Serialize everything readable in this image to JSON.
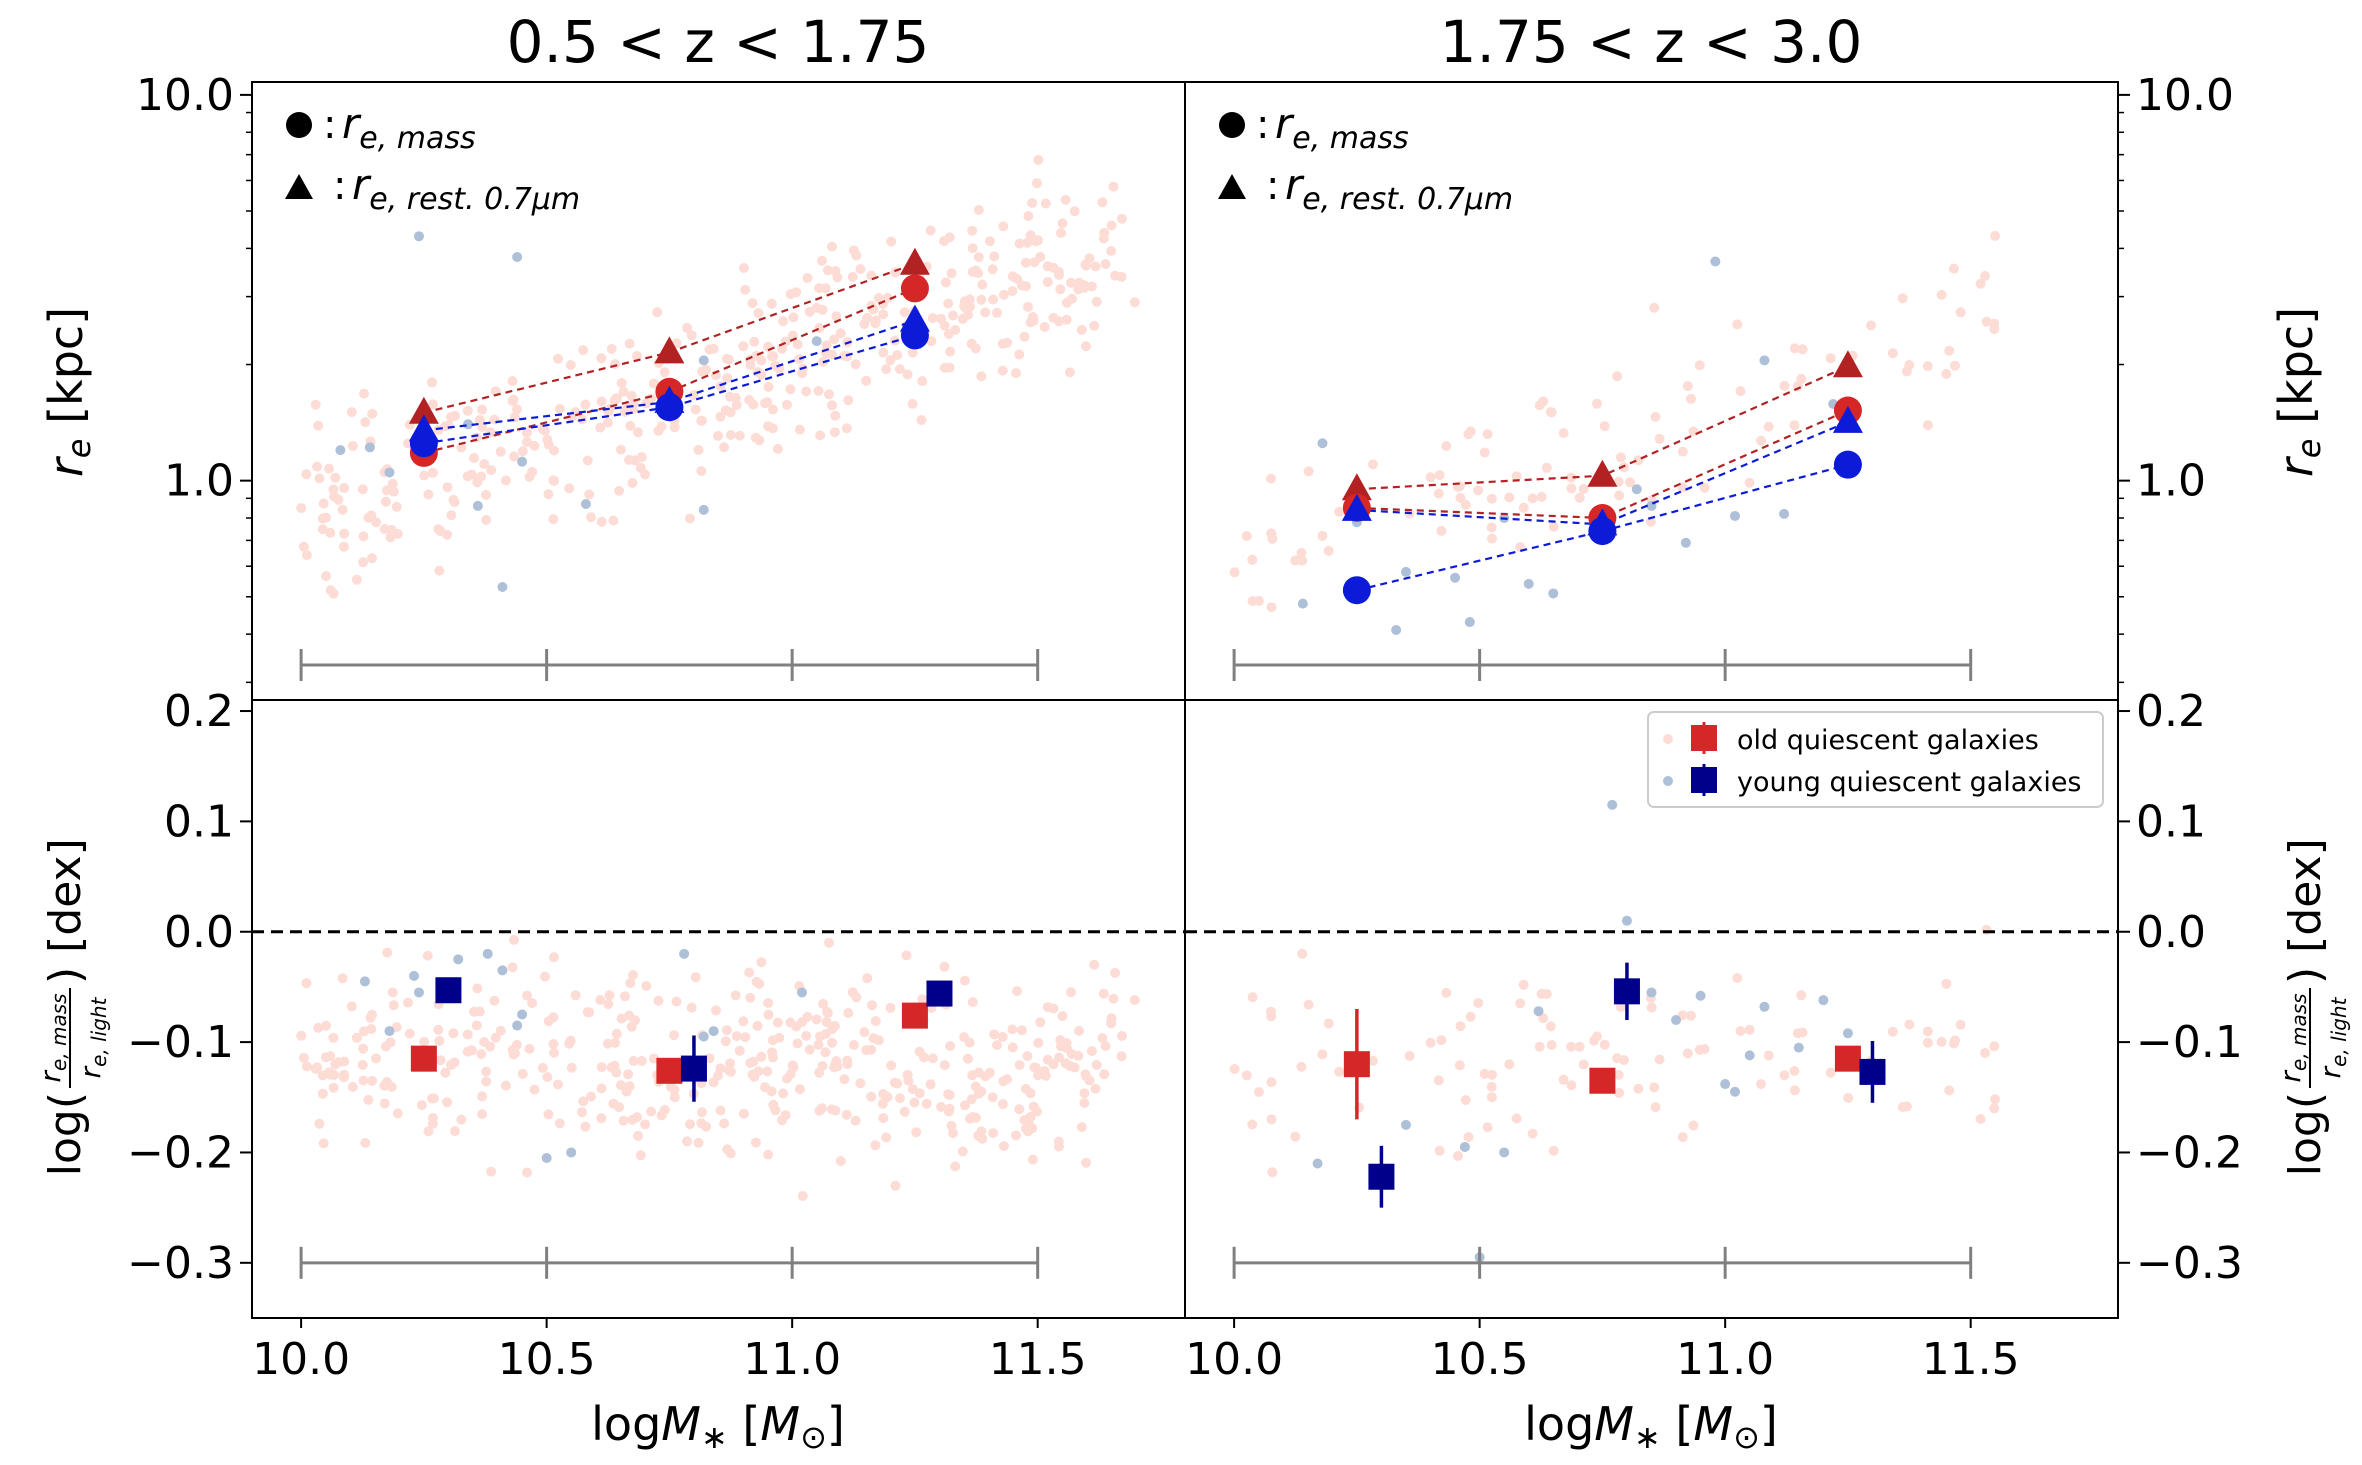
{
  "colors": {
    "old": "#d62728",
    "old_line": "#b22222",
    "old_scatter": "#fddcd6",
    "young": "#0b1bd8",
    "young_sq": "#00008b",
    "young_scatter": "#aebfd8",
    "bin_bar": "#808080",
    "axis": "#000000"
  },
  "chart_data": {
    "type": "scatter",
    "figure": "2x2 panels: rows = effective radius / radius ratio, columns = redshift bins",
    "columns": [
      {
        "title": "0.5 < z < 1.75"
      },
      {
        "title": "1.75 < z < 3.0"
      }
    ],
    "xlabel": "logM∗ [M⊙]",
    "xlim": [
      9.9,
      11.8
    ],
    "xticks": [
      "10.0",
      "10.5",
      "11.0",
      "11.5"
    ],
    "bin_edges": [
      10.0,
      10.5,
      11.0,
      11.5
    ],
    "top_row": {
      "ylabel": "r_e [kpc]",
      "yscale": "log",
      "ylim": [
        0.27,
        10.8
      ],
      "yticks": [
        {
          "label": "1.0",
          "value": 1.0
        },
        {
          "label": "10.0",
          "value": 10.0
        }
      ],
      "marker_legend": [
        {
          "symbol": "●",
          "label": "r_e,mass"
        },
        {
          "symbol": "▲",
          "label": "r_e,rest.0.7μm"
        }
      ],
      "panels": [
        {
          "old_light": {
            "x": [
              10.25,
              10.75,
              11.25
            ],
            "y": [
              1.5,
              2.15,
              3.65
            ]
          },
          "old_mass": {
            "x": [
              10.25,
              10.75,
              11.25
            ],
            "y": [
              1.18,
              1.7,
              3.15
            ]
          },
          "young_light": {
            "x": [
              10.25,
              10.75,
              11.25
            ],
            "y": [
              1.35,
              1.6,
              2.6
            ]
          },
          "young_mass": {
            "x": [
              10.25,
              10.75,
              11.25
            ],
            "y": [
              1.25,
              1.55,
              2.38
            ]
          },
          "young_individual": {
            "x": [
              10.08,
              10.14,
              10.18,
              10.24,
              10.34,
              10.44,
              10.45,
              10.36,
              10.41,
              10.58,
              10.82,
              10.82,
              11.05
            ],
            "y": [
              1.2,
              1.22,
              1.05,
              4.3,
              1.4,
              3.8,
              1.12,
              0.86,
              0.53,
              0.87,
              0.84,
              2.05,
              2.3
            ]
          }
        },
        {
          "old_light": {
            "x": [
              10.25,
              10.75,
              11.25
            ],
            "y": [
              0.95,
              1.03,
              1.98
            ]
          },
          "old_mass": {
            "x": [
              10.25,
              10.75,
              11.25
            ],
            "y": [
              0.85,
              0.8,
              1.52
            ]
          },
          "young_light": {
            "x": [
              10.25,
              10.75,
              11.25
            ],
            "y": [
              0.84,
              0.77,
              1.42
            ]
          },
          "young_mass": {
            "x": [
              10.25,
              10.75,
              11.25
            ],
            "y": [
              0.52,
              0.74,
              1.1
            ]
          },
          "young_individual": {
            "x": [
              10.14,
              10.18,
              10.25,
              10.33,
              10.35,
              10.45,
              10.48,
              10.55,
              10.6,
              10.65,
              10.82,
              10.85,
              10.92,
              10.98,
              11.02,
              11.08,
              11.12,
              11.22
            ],
            "y": [
              0.48,
              1.25,
              0.78,
              0.41,
              0.58,
              0.56,
              0.43,
              0.8,
              0.54,
              0.51,
              0.95,
              0.86,
              0.69,
              3.7,
              0.81,
              2.05,
              0.82,
              1.58
            ]
          }
        }
      ]
    },
    "bottom_row": {
      "ylabel": "log(r_e,mass / r_e,light) [dex]",
      "ylim": [
        -0.35,
        0.21
      ],
      "yticks": [
        {
          "label": "−0.3",
          "value": -0.3
        },
        {
          "label": "−0.2",
          "value": -0.2
        },
        {
          "label": "−0.1",
          "value": -0.1
        },
        {
          "label": "0.0",
          "value": 0.0
        },
        {
          "label": "0.1",
          "value": 0.1
        },
        {
          "label": "0.2",
          "value": 0.2
        }
      ],
      "reference_line": 0.0,
      "legend": [
        "old quiescent galaxies",
        "young quiescent galaxies"
      ],
      "panels": [
        {
          "old": {
            "x": [
              10.25,
              10.75,
              11.25
            ],
            "y": [
              -0.115,
              -0.126,
              -0.076
            ],
            "yerr": [
              0.007,
              0.008,
              0.007
            ]
          },
          "young": {
            "x": [
              10.3,
              10.8,
              11.3
            ],
            "y": [
              -0.053,
              -0.124,
              -0.056
            ],
            "yerr": [
              0.008,
              0.03,
              0.008
            ]
          },
          "young_individual": {
            "x": [
              10.13,
              10.18,
              10.23,
              10.24,
              10.32,
              10.38,
              10.41,
              10.44,
              10.45,
              10.5,
              10.55,
              10.78,
              10.82,
              10.84,
              11.02
            ],
            "y": [
              -0.045,
              -0.09,
              -0.04,
              -0.055,
              -0.025,
              -0.02,
              -0.035,
              -0.085,
              -0.075,
              -0.205,
              -0.2,
              -0.02,
              -0.095,
              -0.09,
              -0.055
            ]
          }
        },
        {
          "old": {
            "x": [
              10.25,
              10.75,
              11.25
            ],
            "y": [
              -0.12,
              -0.135,
              -0.115
            ],
            "yerr": [
              0.05,
              0.008,
              0.01
            ]
          },
          "young": {
            "x": [
              10.3,
              10.8,
              11.3
            ],
            "y": [
              -0.222,
              -0.054,
              -0.127
            ],
            "yerr": [
              0.028,
              0.026,
              0.028
            ]
          },
          "young_individual": {
            "x": [
              10.17,
              10.35,
              10.47,
              10.5,
              10.55,
              10.62,
              10.77,
              10.8,
              10.85,
              10.9,
              10.95,
              11.0,
              11.02,
              11.05,
              11.08,
              11.15,
              11.2,
              11.25
            ],
            "y": [
              -0.21,
              -0.175,
              -0.195,
              -0.295,
              -0.2,
              -0.072,
              0.115,
              0.01,
              -0.055,
              -0.08,
              -0.058,
              -0.138,
              -0.145,
              -0.112,
              -0.068,
              -0.105,
              -0.062,
              -0.092
            ]
          }
        }
      ]
    }
  }
}
